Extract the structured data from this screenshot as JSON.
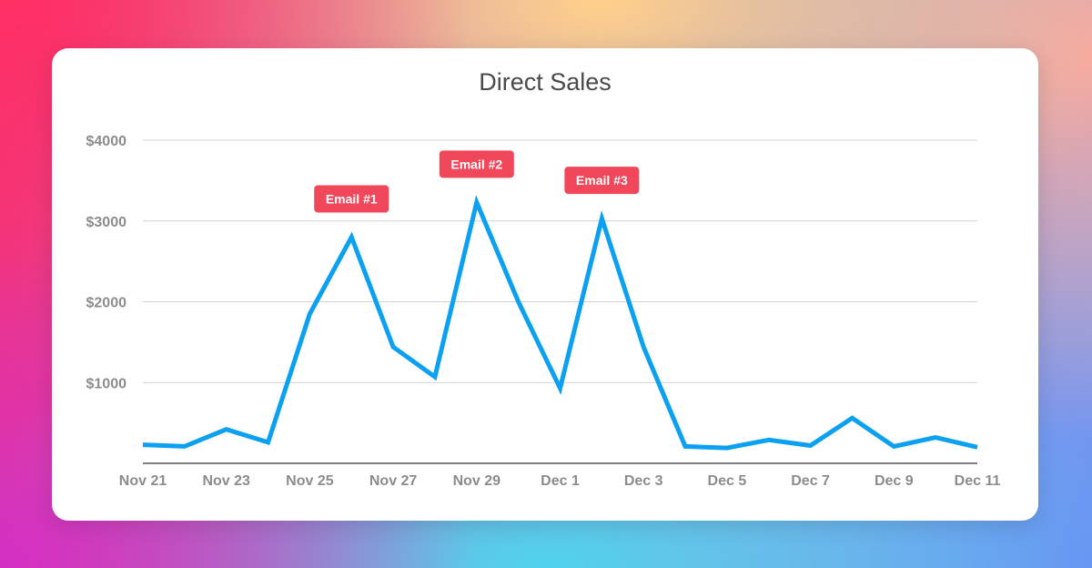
{
  "chart_data": {
    "type": "line",
    "title": "Direct Sales",
    "xlabel": "",
    "ylabel": "",
    "x": [
      "Nov 21",
      "Nov 22",
      "Nov 23",
      "Nov 24",
      "Nov 25",
      "Nov 26",
      "Nov 27",
      "Nov 28",
      "Nov 29",
      "Nov 30",
      "Dec 1",
      "Dec 2",
      "Dec 3",
      "Dec 4",
      "Dec 5",
      "Dec 6",
      "Dec 7",
      "Dec 8",
      "Dec 9",
      "Dec 10",
      "Dec 11"
    ],
    "x_tick_labels": [
      "Nov 21",
      "Nov 23",
      "Nov 25",
      "Nov 27",
      "Nov 29",
      "Dec 1",
      "Dec 3",
      "Dec 5",
      "Dec 7",
      "Dec 9",
      "Dec 11"
    ],
    "y_ticks": [
      1000,
      2000,
      3000,
      4000
    ],
    "y_tick_labels": [
      "$1000",
      "$2000",
      "$3000",
      "$4000"
    ],
    "ylim": [
      0,
      4000
    ],
    "grid": true,
    "series": [
      {
        "color": "#0ba0f0",
        "values": [
          230,
          210,
          420,
          260,
          1850,
          2800,
          1440,
          1070,
          3230,
          2000,
          930,
          3030,
          1440,
          210,
          190,
          290,
          220,
          560,
          210,
          320,
          200
        ]
      }
    ],
    "annotations": [
      {
        "text": "Email #1",
        "x": "Nov 26"
      },
      {
        "text": "Email #2",
        "x": "Nov 29"
      },
      {
        "text": "Email #3",
        "x": "Dec 2"
      }
    ],
    "annotation_color": "#f0475b"
  }
}
